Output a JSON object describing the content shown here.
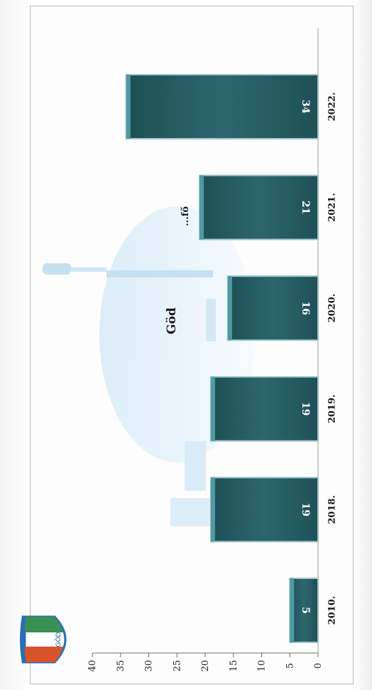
{
  "title": "Göd",
  "subtitle": "...fő",
  "logo_text": "GÖD",
  "chart_data": {
    "type": "bar",
    "categories": [
      "2010.",
      "2018.",
      "2019.",
      "2020.",
      "2021.",
      "2022."
    ],
    "values": [
      5,
      19,
      19,
      16,
      21,
      34
    ],
    "data_labels": [
      "5",
      "19",
      "19",
      "16",
      "21",
      "34"
    ],
    "yticks": [
      "0",
      "5",
      "10",
      "15",
      "20",
      "25",
      "30",
      "35",
      "40"
    ],
    "ylim": [
      0,
      40
    ],
    "bar_color": "#265b61",
    "bar_edge_color": "#9fc4cc",
    "orientation": "rotated",
    "grid": false
  }
}
